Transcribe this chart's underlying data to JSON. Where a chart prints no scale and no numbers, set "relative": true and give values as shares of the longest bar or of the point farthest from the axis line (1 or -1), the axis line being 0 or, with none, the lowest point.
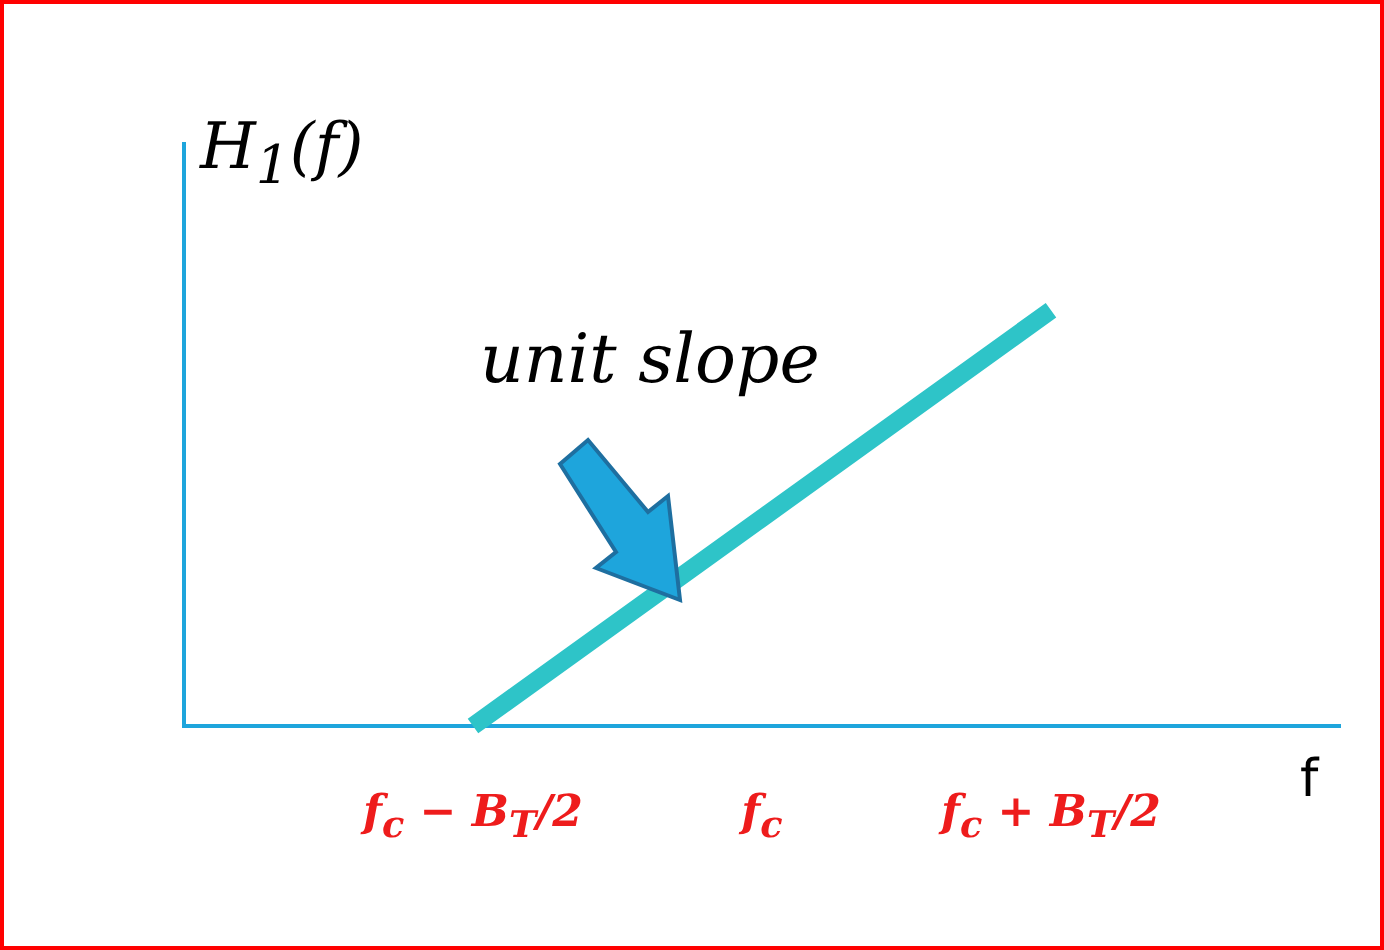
{
  "chart_data": {
    "type": "line",
    "relative": true,
    "ylabel": "H$_{1}$(f)",
    "xlabel": "f",
    "annotations": [
      "unit slope"
    ],
    "categories": [
      null,
      "f$_{c}$ − B$_{T}$/2",
      "f$_{c}$",
      "f$_{c}$ + B$_{T}$/2",
      null
    ],
    "values": [
      null,
      0,
      0.5,
      1,
      null
    ],
    "color": "#2ec4c8",
    "marker": "none",
    "grid": false,
    "legend": false
  }
}
